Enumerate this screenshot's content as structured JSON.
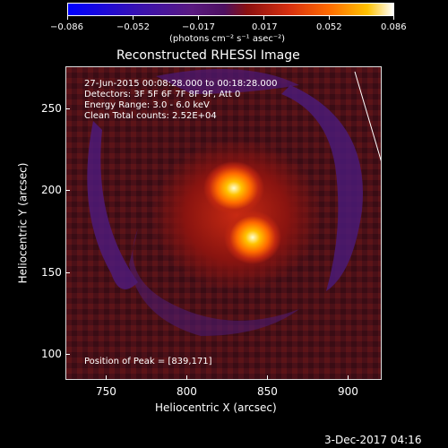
{
  "colorbar": {
    "ticks": [
      "−0.086",
      "−0.052",
      "−0.017",
      "0.017",
      "0.052",
      "0.086"
    ],
    "units": "(photons cm⁻² s⁻¹ asec⁻²)"
  },
  "image": {
    "title": "Reconstructed RHESSI Image",
    "info_lines": [
      "27-Jun-2015 00:08:28.000 to 00:18:28.000",
      "Detectors: 3F 5F 6F 7F 8F 9F, Att 0",
      "Energy Range: 3.0 - 6.0 keV",
      "Clean     Total counts: 2.52E+04"
    ],
    "peak_label": "Position of Peak = [839,171]",
    "xlabel": "Heliocentric X (arcsec)",
    "ylabel": "Heliocentric Y (arcsec)",
    "xticks": [
      "750",
      "800",
      "850",
      "900"
    ],
    "yticks": [
      "250",
      "200",
      "150",
      "100"
    ],
    "x_range": [
      725,
      920
    ],
    "y_range": [
      83,
      277
    ],
    "colors": {
      "background_dark": "#4a1018",
      "purple": "#5a1a80",
      "bright": "#ffc200"
    }
  },
  "footer": {
    "timestamp": "3-Dec-2017 04:16"
  }
}
